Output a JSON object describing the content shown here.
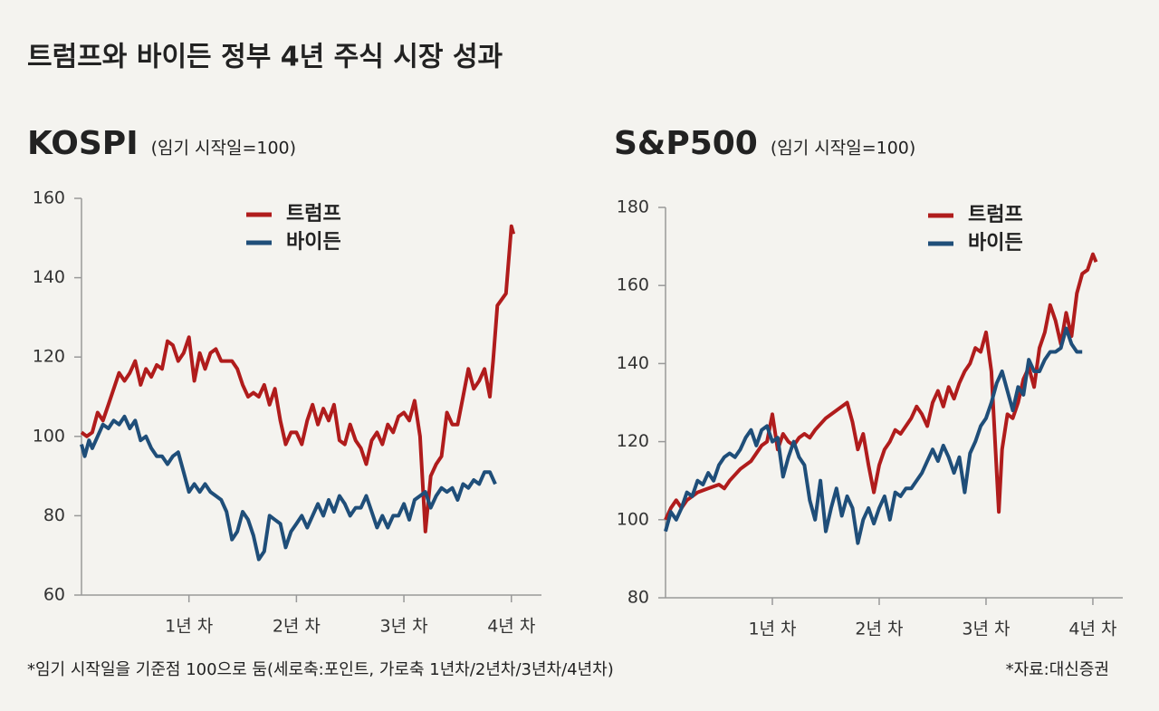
{
  "title": "트럼프와 바이든 정부 4년 주식 시장 성과",
  "footnote": "*임기 시작일을 기준점 100으로 둠(세로축:포인트, 가로축 1년차/2년차/3년차/4년차)",
  "source": "*자료:대신증권",
  "chart_data": [
    {
      "type": "line",
      "title": "KOSPI",
      "subtitle": "(임기 시작일=100)",
      "xlim": [
        0,
        4.28
      ],
      "xticks": [
        {
          "value": 1,
          "label": "1년 차"
        },
        {
          "value": 2,
          "label": "2년 차"
        },
        {
          "value": 3,
          "label": "3년 차"
        },
        {
          "value": 4,
          "label": "4년 차"
        }
      ],
      "ylim": [
        60,
        160
      ],
      "yticks": [
        60,
        80,
        100,
        120,
        140,
        160
      ],
      "grid": false,
      "series": [
        {
          "name": "트럼프",
          "color": "#b01c1c",
          "x": [
            0,
            0.05,
            0.1,
            0.15,
            0.2,
            0.25,
            0.3,
            0.35,
            0.4,
            0.45,
            0.5,
            0.55,
            0.6,
            0.65,
            0.7,
            0.75,
            0.8,
            0.85,
            0.9,
            0.95,
            1.0,
            1.05,
            1.1,
            1.15,
            1.2,
            1.25,
            1.3,
            1.4,
            1.45,
            1.5,
            1.55,
            1.6,
            1.65,
            1.7,
            1.75,
            1.8,
            1.85,
            1.9,
            1.95,
            2.0,
            2.05,
            2.1,
            2.15,
            2.2,
            2.25,
            2.3,
            2.35,
            2.4,
            2.45,
            2.5,
            2.55,
            2.6,
            2.65,
            2.7,
            2.75,
            2.8,
            2.85,
            2.9,
            2.95,
            3.0,
            3.05,
            3.1,
            3.15,
            3.2,
            3.25,
            3.3,
            3.35,
            3.4,
            3.45,
            3.5,
            3.55,
            3.6,
            3.65,
            3.7,
            3.75,
            3.8,
            3.83,
            3.87,
            3.95,
            4.0,
            4.02
          ],
          "values": [
            101,
            100,
            101,
            106,
            104,
            108,
            112,
            116,
            114,
            116,
            119,
            113,
            117,
            115,
            118,
            117,
            124,
            123,
            119,
            121,
            125,
            114,
            121,
            117,
            121,
            122,
            119,
            119,
            117,
            113,
            110,
            111,
            110,
            113,
            108,
            112,
            104,
            98,
            101,
            101,
            98,
            104,
            108,
            103,
            107,
            104,
            108,
            99,
            98,
            103,
            99,
            97,
            93,
            99,
            101,
            98,
            103,
            101,
            105,
            106,
            104,
            109,
            100,
            76,
            90,
            93,
            95,
            106,
            103,
            103,
            110,
            117,
            112,
            114,
            117,
            110,
            119,
            133,
            136,
            153,
            151
          ]
        },
        {
          "name": "바이든",
          "color": "#1f4e79",
          "x": [
            0,
            0.03,
            0.07,
            0.1,
            0.15,
            0.2,
            0.25,
            0.3,
            0.35,
            0.4,
            0.45,
            0.5,
            0.55,
            0.6,
            0.65,
            0.7,
            0.75,
            0.8,
            0.85,
            0.9,
            0.95,
            1.0,
            1.05,
            1.1,
            1.15,
            1.2,
            1.25,
            1.3,
            1.35,
            1.4,
            1.45,
            1.5,
            1.55,
            1.6,
            1.65,
            1.7,
            1.75,
            1.8,
            1.85,
            1.9,
            1.95,
            2.0,
            2.05,
            2.1,
            2.15,
            2.2,
            2.25,
            2.3,
            2.35,
            2.4,
            2.45,
            2.5,
            2.55,
            2.6,
            2.65,
            2.7,
            2.75,
            2.8,
            2.85,
            2.9,
            2.95,
            3.0,
            3.05,
            3.1,
            3.15,
            3.2,
            3.25,
            3.3,
            3.35,
            3.4,
            3.45,
            3.5,
            3.55,
            3.6,
            3.65,
            3.7,
            3.75,
            3.8,
            3.85
          ],
          "values": [
            98,
            95,
            99,
            97,
            100,
            103,
            102,
            104,
            103,
            105,
            102,
            104,
            99,
            100,
            97,
            95,
            95,
            93,
            95,
            96,
            91,
            86,
            88,
            86,
            88,
            86,
            85,
            84,
            81,
            74,
            76,
            81,
            79,
            75,
            69,
            71,
            80,
            79,
            78,
            72,
            76,
            78,
            80,
            77,
            80,
            83,
            80,
            84,
            81,
            85,
            83,
            80,
            82,
            82,
            85,
            81,
            77,
            80,
            77,
            80,
            80,
            83,
            79,
            84,
            85,
            86,
            82,
            85,
            87,
            86,
            87,
            84,
            88,
            87,
            89,
            88,
            91,
            91,
            88
          ]
        }
      ]
    },
    {
      "type": "line",
      "title": "S&P500",
      "subtitle": "(임기 시작일=100)",
      "xlim": [
        0,
        4.28
      ],
      "xticks": [
        {
          "value": 1,
          "label": "1년 차"
        },
        {
          "value": 2,
          "label": "2년 차"
        },
        {
          "value": 3,
          "label": "3년 차"
        },
        {
          "value": 4,
          "label": "4년 차"
        }
      ],
      "ylim": [
        80,
        180
      ],
      "yticks": [
        80,
        100,
        120,
        140,
        160,
        180
      ],
      "grid": false,
      "series": [
        {
          "name": "트럼프",
          "color": "#b01c1c",
          "x": [
            0,
            0.05,
            0.1,
            0.15,
            0.2,
            0.3,
            0.4,
            0.5,
            0.55,
            0.6,
            0.7,
            0.8,
            0.85,
            0.9,
            0.95,
            1.0,
            1.05,
            1.1,
            1.15,
            1.2,
            1.25,
            1.3,
            1.35,
            1.4,
            1.5,
            1.6,
            1.7,
            1.75,
            1.8,
            1.85,
            1.9,
            1.95,
            2.0,
            2.05,
            2.1,
            2.15,
            2.2,
            2.3,
            2.35,
            2.4,
            2.45,
            2.5,
            2.55,
            2.6,
            2.65,
            2.7,
            2.75,
            2.8,
            2.85,
            2.9,
            2.95,
            3.0,
            3.05,
            3.1,
            3.12,
            3.15,
            3.2,
            3.25,
            3.3,
            3.35,
            3.4,
            3.45,
            3.5,
            3.55,
            3.6,
            3.65,
            3.7,
            3.75,
            3.8,
            3.85,
            3.9,
            3.95,
            4.0,
            4.03
          ],
          "values": [
            100,
            103,
            105,
            103,
            105,
            107,
            108,
            109,
            108,
            110,
            113,
            115,
            117,
            119,
            120,
            127,
            118,
            122,
            120,
            119,
            121,
            122,
            121,
            123,
            126,
            128,
            130,
            125,
            118,
            122,
            114,
            107,
            114,
            118,
            120,
            123,
            122,
            126,
            129,
            127,
            124,
            130,
            133,
            129,
            134,
            131,
            135,
            138,
            140,
            144,
            143,
            148,
            138,
            112,
            102,
            118,
            127,
            126,
            130,
            136,
            139,
            134,
            144,
            148,
            155,
            151,
            145,
            153,
            147,
            158,
            163,
            164,
            168,
            166
          ]
        },
        {
          "name": "바이든",
          "color": "#1f4e79",
          "x": [
            0,
            0.05,
            0.1,
            0.15,
            0.2,
            0.25,
            0.3,
            0.35,
            0.4,
            0.45,
            0.5,
            0.55,
            0.6,
            0.65,
            0.7,
            0.75,
            0.8,
            0.85,
            0.9,
            0.95,
            1.0,
            1.05,
            1.1,
            1.15,
            1.2,
            1.25,
            1.3,
            1.35,
            1.4,
            1.45,
            1.5,
            1.55,
            1.6,
            1.65,
            1.7,
            1.75,
            1.8,
            1.85,
            1.9,
            1.95,
            2.0,
            2.05,
            2.1,
            2.15,
            2.2,
            2.25,
            2.3,
            2.4,
            2.45,
            2.5,
            2.55,
            2.6,
            2.65,
            2.7,
            2.75,
            2.8,
            2.85,
            2.9,
            2.95,
            3.0,
            3.05,
            3.1,
            3.15,
            3.2,
            3.25,
            3.3,
            3.35,
            3.4,
            3.45,
            3.5,
            3.55,
            3.6,
            3.65,
            3.7,
            3.75,
            3.8,
            3.85,
            3.9
          ],
          "values": [
            97,
            102,
            100,
            103,
            107,
            106,
            110,
            109,
            112,
            110,
            114,
            116,
            117,
            116,
            118,
            121,
            123,
            119,
            123,
            124,
            120,
            121,
            111,
            116,
            120,
            116,
            114,
            105,
            100,
            110,
            97,
            103,
            108,
            101,
            106,
            103,
            94,
            100,
            103,
            99,
            103,
            106,
            100,
            107,
            106,
            108,
            108,
            112,
            115,
            118,
            115,
            119,
            116,
            112,
            116,
            107,
            117,
            120,
            124,
            126,
            130,
            135,
            138,
            133,
            128,
            134,
            132,
            141,
            138,
            138,
            141,
            143,
            143,
            144,
            149,
            145,
            143,
            143
          ]
        }
      ]
    }
  ]
}
